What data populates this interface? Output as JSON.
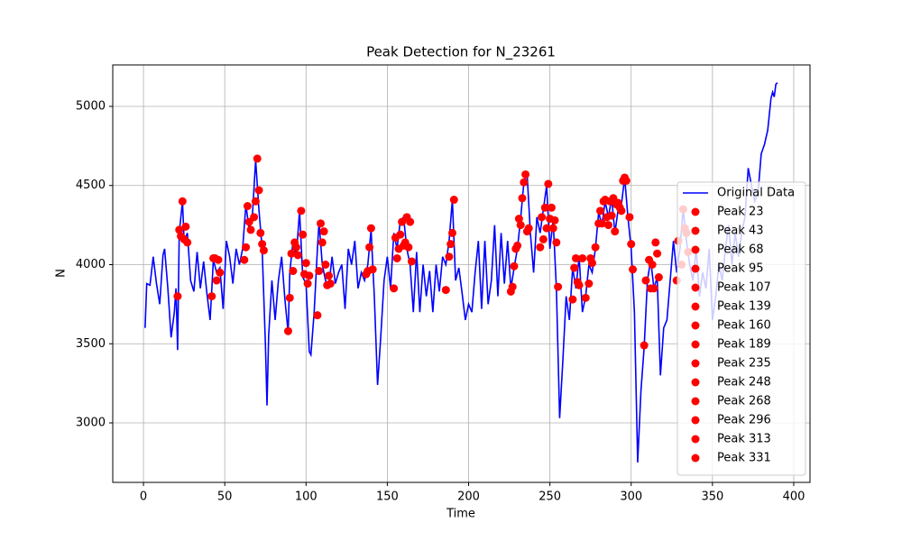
{
  "chart_data": {
    "type": "line",
    "title": "Peak Detection for N_23261",
    "x_label": "Time",
    "y_label": "N",
    "xlim": [
      -18.9,
      410
    ],
    "ylim": [
      2624,
      5262
    ],
    "xticks": [
      0,
      50,
      100,
      150,
      200,
      250,
      300,
      350,
      400
    ],
    "yticks": [
      3000,
      3500,
      4000,
      4500,
      5000
    ],
    "grid": true,
    "legend_loc": "lower right",
    "series": [
      {
        "name": "Original Data",
        "color": "#0000ff",
        "type": "line",
        "x": [
          1,
          2,
          4,
          6,
          8,
          10,
          12,
          13,
          15,
          17,
          19,
          20,
          21,
          22,
          24,
          25,
          27,
          29,
          31,
          33,
          35,
          37,
          39,
          41,
          43,
          45,
          47,
          49,
          51,
          53,
          55,
          57,
          59,
          61,
          63,
          65,
          67,
          69,
          71,
          73,
          75,
          76,
          77,
          79,
          81,
          83,
          85,
          87,
          89,
          90,
          92,
          94,
          96,
          98,
          100,
          102,
          103,
          105,
          107,
          108,
          110,
          112,
          114,
          116,
          118,
          120,
          122,
          124,
          126,
          128,
          130,
          132,
          134,
          136,
          138,
          140,
          142,
          144,
          146,
          148,
          150,
          152,
          154,
          156,
          158,
          160,
          162,
          164,
          166,
          168,
          170,
          172,
          174,
          176,
          178,
          180,
          182,
          184,
          186,
          188,
          190,
          192,
          194,
          196,
          198,
          200,
          202,
          204,
          206,
          208,
          210,
          212,
          214,
          216,
          218,
          220,
          222,
          224,
          226,
          228,
          230,
          232,
          234,
          236,
          238,
          240,
          242,
          244,
          246,
          248,
          250,
          252,
          254,
          256,
          258,
          260,
          262,
          264,
          266,
          268,
          270,
          272,
          274,
          276,
          278,
          280,
          282,
          284,
          286,
          288,
          290,
          292,
          294,
          296,
          298,
          300,
          302,
          304,
          306,
          308,
          310,
          312,
          314,
          316,
          318,
          320,
          322,
          324,
          326,
          328,
          330,
          332,
          334,
          336,
          338,
          340,
          342,
          344,
          346,
          348,
          350,
          352,
          354,
          356,
          358,
          360,
          362,
          364,
          366,
          368,
          370,
          372,
          374,
          376,
          378,
          380,
          382,
          384,
          386,
          387,
          388,
          389,
          390
        ],
        "values": [
          3600,
          3880,
          3870,
          4050,
          3880,
          3750,
          4060,
          4100,
          3850,
          3540,
          3700,
          3850,
          3460,
          4200,
          4400,
          4150,
          4200,
          3900,
          3830,
          4080,
          3850,
          4020,
          3820,
          3650,
          4030,
          3950,
          3980,
          3720,
          4150,
          4050,
          3880,
          4100,
          4000,
          4100,
          4380,
          4220,
          4310,
          4660,
          4350,
          4100,
          3500,
          3110,
          3550,
          3900,
          3650,
          3900,
          4050,
          3780,
          3570,
          3950,
          4150,
          4050,
          4340,
          3920,
          3880,
          3450,
          3430,
          3700,
          4100,
          4270,
          4000,
          3900,
          3860,
          4050,
          3880,
          3950,
          4000,
          3720,
          4100,
          4000,
          4150,
          3850,
          3950,
          3900,
          4000,
          4220,
          3800,
          3240,
          3550,
          3900,
          4050,
          3850,
          4200,
          4100,
          4280,
          4300,
          4100,
          4000,
          3700,
          4080,
          3700,
          4000,
          3800,
          3960,
          3700,
          4000,
          3830,
          4050,
          4000,
          4150,
          4410,
          3900,
          3980,
          3820,
          3650,
          3750,
          3700,
          3950,
          4150,
          3720,
          4150,
          3750,
          3900,
          4250,
          3800,
          4200,
          3880,
          4150,
          3850,
          3980,
          4100,
          4290,
          4520,
          4570,
          4200,
          3950,
          4300,
          4200,
          4350,
          4500,
          4100,
          4280,
          3850,
          3030,
          3400,
          3800,
          3650,
          3980,
          3850,
          4050,
          3700,
          3800,
          4000,
          3950,
          4100,
          4330,
          4250,
          4400,
          4300,
          4420,
          4200,
          4350,
          4380,
          4550,
          4300,
          4100,
          3700,
          2750,
          3200,
          3480,
          3900,
          4030,
          3850,
          3920,
          3300,
          3600,
          3650,
          3900,
          4150,
          3950,
          4100,
          4350,
          4150,
          4000,
          3900,
          4100,
          3800,
          3950,
          3850,
          4100,
          3650,
          3800,
          4000,
          3900,
          4100,
          4250,
          4000,
          4200,
          4050,
          4200,
          4300,
          4610,
          4500,
          4400,
          4450,
          4700,
          4760,
          4850,
          5050,
          5090,
          5060,
          5140,
          5150
        ]
      },
      {
        "name": "Peak 23",
        "color": "#ff0000",
        "type": "scatter",
        "x": [
          21,
          22,
          23,
          24,
          25,
          26,
          27
        ],
        "values": [
          3800,
          4220,
          4180,
          4400,
          4160,
          4240,
          4140
        ]
      },
      {
        "name": "Peak 43",
        "color": "#ff0000",
        "type": "scatter",
        "x": [
          42,
          43,
          44,
          45,
          46,
          47
        ],
        "values": [
          3800,
          4040,
          4040,
          3900,
          4030,
          3950
        ]
      },
      {
        "name": "Peak 68",
        "color": "#ff0000",
        "type": "scatter",
        "x": [
          62,
          63,
          64,
          65,
          66,
          68,
          69,
          70,
          71,
          72,
          73,
          74
        ],
        "values": [
          4030,
          4110,
          4370,
          4270,
          4220,
          4300,
          4400,
          4670,
          4470,
          4200,
          4130,
          4090
        ]
      },
      {
        "name": "Peak 95",
        "color": "#ff0000",
        "type": "scatter",
        "x": [
          89,
          90,
          91,
          92,
          93,
          94,
          95,
          97,
          98,
          99,
          100,
          101,
          102
        ],
        "values": [
          3580,
          3790,
          4070,
          3960,
          4140,
          4110,
          4060,
          4340,
          4190,
          3940,
          4010,
          3880,
          3930
        ]
      },
      {
        "name": "Peak 107",
        "color": "#ff0000",
        "type": "scatter",
        "x": [
          107,
          108,
          109,
          110,
          111,
          112,
          113,
          114,
          115
        ],
        "values": [
          3680,
          3960,
          4260,
          4140,
          4210,
          4000,
          3870,
          3930,
          3880
        ]
      },
      {
        "name": "Peak 139",
        "color": "#ff0000",
        "type": "scatter",
        "x": [
          137,
          138,
          139,
          140,
          141
        ],
        "values": [
          3940,
          3960,
          4110,
          4230,
          3970
        ]
      },
      {
        "name": "Peak 160",
        "color": "#ff0000",
        "type": "scatter",
        "x": [
          154,
          155,
          156,
          157,
          158,
          159,
          160,
          161,
          162,
          163,
          164,
          165
        ],
        "values": [
          3850,
          4170,
          4040,
          4100,
          4190,
          4270,
          4120,
          4140,
          4300,
          4110,
          4270,
          4020
        ]
      },
      {
        "name": "Peak 189",
        "color": "#ff0000",
        "type": "scatter",
        "x": [
          186,
          188,
          189,
          190,
          191
        ],
        "values": [
          3840,
          4050,
          4130,
          4200,
          4410
        ]
      },
      {
        "name": "Peak 235",
        "color": "#ff0000",
        "type": "scatter",
        "x": [
          226,
          227,
          228,
          229,
          230,
          231,
          232,
          233,
          234,
          235,
          236,
          237
        ],
        "values": [
          3830,
          3860,
          3990,
          4100,
          4120,
          4290,
          4250,
          4420,
          4520,
          4570,
          4210,
          4230
        ]
      },
      {
        "name": "Peak 248",
        "color": "#ff0000",
        "type": "scatter",
        "x": [
          244,
          245,
          246,
          247,
          248,
          249,
          250,
          251,
          252,
          253,
          254,
          255
        ],
        "values": [
          4110,
          4300,
          4160,
          4360,
          4230,
          4510,
          4290,
          4360,
          4230,
          4280,
          4140,
          3860
        ]
      },
      {
        "name": "Peak 268",
        "color": "#ff0000",
        "type": "scatter",
        "x": [
          264,
          265,
          266,
          267,
          268,
          270,
          272,
          274,
          275,
          276,
          278
        ],
        "values": [
          3780,
          3980,
          4040,
          3890,
          3870,
          4040,
          3790,
          3880,
          4040,
          4010,
          4110
        ]
      },
      {
        "name": "Peak 296",
        "color": "#ff0000",
        "type": "scatter",
        "x": [
          280,
          281,
          282,
          283,
          284,
          285,
          286,
          287,
          288,
          289,
          290,
          291,
          292,
          293,
          294,
          295,
          296,
          297,
          299,
          300,
          301
        ],
        "values": [
          4260,
          4340,
          4260,
          4400,
          4410,
          4300,
          4250,
          4400,
          4310,
          4420,
          4210,
          4380,
          4390,
          4360,
          4340,
          4530,
          4550,
          4530,
          4300,
          4130,
          3970
        ]
      },
      {
        "name": "Peak 313",
        "color": "#ff0000",
        "type": "scatter",
        "x": [
          308,
          309,
          311,
          312,
          313,
          314,
          315,
          316,
          317
        ],
        "values": [
          3490,
          3900,
          4030,
          3850,
          4000,
          3850,
          4140,
          4070,
          3920
        ]
      },
      {
        "name": "Peak 331",
        "color": "#ff0000",
        "type": "scatter",
        "x": [
          328,
          329,
          331,
          332,
          333,
          334,
          335
        ],
        "values": [
          3900,
          4150,
          4000,
          4350,
          4230,
          4200,
          4080
        ]
      }
    ]
  }
}
